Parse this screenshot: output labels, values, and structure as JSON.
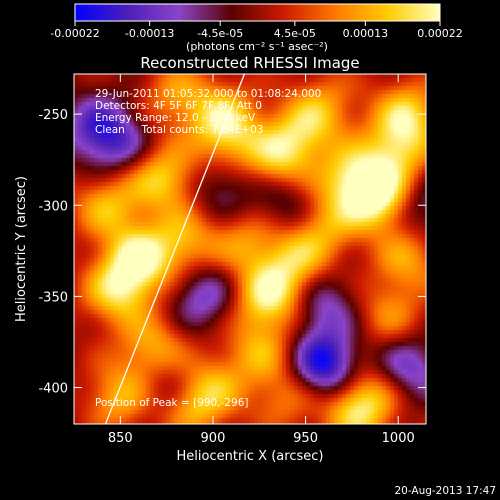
{
  "chart_data": {
    "type": "heatmap",
    "title": "Reconstructed RHESSI Image",
    "xlabel": "Heliocentric X (arcsec)",
    "ylabel": "Heliocentric Y (arcsec)",
    "xlim": [
      825,
      1015
    ],
    "ylim": [
      -420,
      -228
    ],
    "x_ticks": [
      850,
      900,
      950,
      1000
    ],
    "y_ticks": [
      -250,
      -300,
      -350,
      -400
    ],
    "colorbar": {
      "min": -0.00022,
      "max": 0.00022,
      "tick_values": [
        -0.00022,
        -0.00013,
        -4.5e-05,
        4.5e-05,
        0.00013,
        0.00022
      ],
      "tick_labels": [
        "-0.00022",
        "-0.00013",
        "-4.5e-05",
        "4.5e-05",
        "0.00013",
        "0.00022"
      ],
      "label": "(photons cm⁻² s⁻¹ asec⁻²)",
      "colors": [
        "#0000ff",
        "#4b1fb8",
        "#8a44c8",
        "#5a0000",
        "#cc1a00",
        "#ff7a00",
        "#ffcc00",
        "#ffffc0"
      ]
    },
    "info_lines": [
      "29-Jun-2011 01:05:32.000 to 01:08:24.000",
      "Detectors: 4F 5F 6F 7F 8F, Att 0",
      "Energy Range: 12.0 - 25.0 keV",
      "Clean     Total counts: 7.84E+03"
    ],
    "peak_label": "Position of Peak = [990,-296]",
    "limb_line": [
      [
        842,
        -420
      ],
      [
        917,
        -228
      ]
    ],
    "sources": [
      {
        "x": 860,
        "y": -330,
        "value": 0.00021
      },
      {
        "x": 848,
        "y": -348,
        "value": 0.00016
      },
      {
        "x": 843,
        "y": -300,
        "value": 0.00014
      },
      {
        "x": 873,
        "y": -285,
        "value": 0.00017
      },
      {
        "x": 885,
        "y": -320,
        "value": 0.00013
      },
      {
        "x": 868,
        "y": -380,
        "value": 0.00015
      },
      {
        "x": 850,
        "y": -405,
        "value": 0.00014
      },
      {
        "x": 905,
        "y": -250,
        "value": 0.00013
      },
      {
        "x": 908,
        "y": -265,
        "value": 0.00012
      },
      {
        "x": 935,
        "y": -275,
        "value": 0.00015
      },
      {
        "x": 948,
        "y": -260,
        "value": 0.00012
      },
      {
        "x": 930,
        "y": -350,
        "value": 0.0002
      },
      {
        "x": 945,
        "y": -330,
        "value": 0.00014
      },
      {
        "x": 925,
        "y": -380,
        "value": 0.00012
      },
      {
        "x": 918,
        "y": -320,
        "value": 0.00011
      },
      {
        "x": 960,
        "y": -310,
        "value": 0.00012
      },
      {
        "x": 975,
        "y": -285,
        "value": 0.00016
      },
      {
        "x": 990,
        "y": -296,
        "value": 0.00022
      },
      {
        "x": 1005,
        "y": -250,
        "value": 0.00016
      },
      {
        "x": 1000,
        "y": -270,
        "value": 0.00014
      },
      {
        "x": 1005,
        "y": -330,
        "value": 0.00012
      },
      {
        "x": 995,
        "y": -360,
        "value": 0.0001
      },
      {
        "x": 985,
        "y": -405,
        "value": 0.00013
      },
      {
        "x": 975,
        "y": -415,
        "value": 0.00012
      },
      {
        "x": 940,
        "y": -405,
        "value": 0.0001
      },
      {
        "x": 900,
        "y": -400,
        "value": 0.00011
      },
      {
        "x": 888,
        "y": -410,
        "value": 0.00012
      },
      {
        "x": 960,
        "y": -245,
        "value": 0.0001
      },
      {
        "x": 880,
        "y": -240,
        "value": 0.00011
      },
      {
        "x": 960,
        "y": -388,
        "value": -0.00022
      },
      {
        "x": 895,
        "y": -350,
        "value": -0.00012
      },
      {
        "x": 838,
        "y": -258,
        "value": -0.00014
      },
      {
        "x": 960,
        "y": -355,
        "value": -0.00011
      },
      {
        "x": 1005,
        "y": -390,
        "value": -0.00013
      },
      {
        "x": 875,
        "y": -398,
        "value": -0.0001
      },
      {
        "x": 940,
        "y": -300,
        "value": -0.0001
      },
      {
        "x": 850,
        "y": -268,
        "value": -9e-05
      },
      {
        "x": 905,
        "y": -290,
        "value": -9e-05
      },
      {
        "x": 1012,
        "y": -300,
        "value": -0.0001
      }
    ]
  },
  "footer": {
    "date": "20-Aug-2013 17:47"
  }
}
